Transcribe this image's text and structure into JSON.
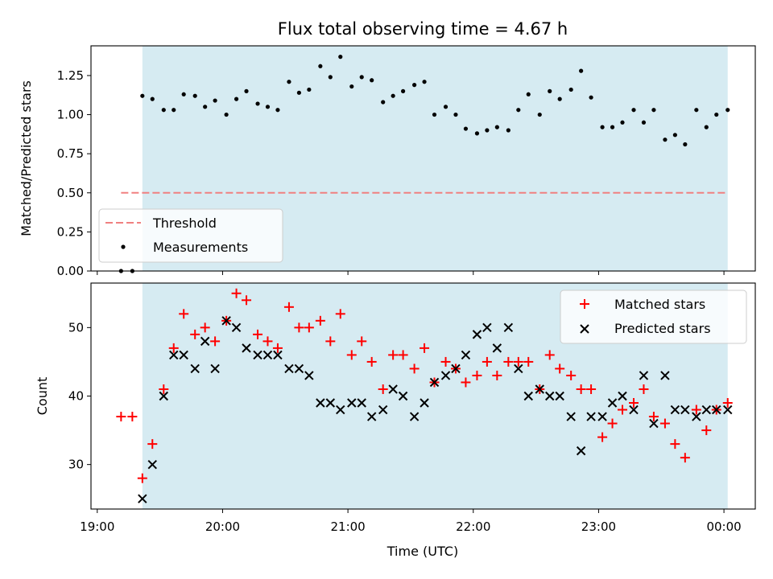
{
  "chart_data": {
    "title": "Flux total observing time = 4.67 h",
    "xlabel": "Time (UTC)",
    "x_unit": "hours",
    "xlim": [
      18.95,
      24.25
    ],
    "xticks": [
      {
        "value": 19,
        "label": "19:00"
      },
      {
        "value": 20,
        "label": "20:00"
      },
      {
        "value": 21,
        "label": "21:00"
      },
      {
        "value": 22,
        "label": "22:00"
      },
      {
        "value": 23,
        "label": "23:00"
      },
      {
        "value": 24,
        "label": "00:00"
      }
    ],
    "observing_window": [
      19.36,
      24.03
    ],
    "colors": {
      "shade": "#add8e6",
      "threshold": "#f08080",
      "matched": "#ff0000",
      "predicted": "#000000",
      "measurement": "#000000"
    },
    "panels": [
      {
        "type": "scatter",
        "ylabel": "Matched/Predicted stars",
        "ylim": [
          0,
          1.44
        ],
        "yticks": [
          "0.00",
          "0.25",
          "0.50",
          "0.75",
          "1.00",
          "1.25"
        ],
        "legend_position": "lower left",
        "threshold": {
          "name": "Threshold",
          "y": 0.5,
          "x_range": [
            19.19,
            24.03
          ],
          "style": "dashed"
        },
        "series": [
          {
            "name": "Measurements",
            "marker": "dot",
            "x": [
              19.19,
              19.28,
              19.36,
              19.44,
              19.53,
              19.61,
              19.69,
              19.78,
              19.86,
              19.94,
              20.03,
              20.11,
              20.19,
              20.28,
              20.36,
              20.44,
              20.53,
              20.61,
              20.69,
              20.78,
              20.86,
              20.94,
              21.03,
              21.11,
              21.19,
              21.28,
              21.36,
              21.44,
              21.53,
              21.61,
              21.69,
              21.78,
              21.86,
              21.94,
              22.03,
              22.11,
              22.19,
              22.28,
              22.36,
              22.44,
              22.53,
              22.61,
              22.69,
              22.78,
              22.86,
              22.94,
              23.03,
              23.11,
              23.19,
              23.28,
              23.36,
              23.44,
              23.53,
              23.61,
              23.69,
              23.78,
              23.86,
              23.94,
              24.03
            ],
            "y": [
              0.0,
              0.0,
              1.12,
              1.1,
              1.03,
              1.03,
              1.13,
              1.12,
              1.05,
              1.09,
              1.0,
              1.1,
              1.15,
              1.07,
              1.05,
              1.03,
              1.21,
              1.14,
              1.16,
              1.31,
              1.24,
              1.37,
              1.18,
              1.24,
              1.22,
              1.08,
              1.12,
              1.15,
              1.19,
              1.21,
              1.0,
              1.05,
              1.0,
              0.91,
              0.88,
              0.9,
              0.92,
              0.9,
              1.03,
              1.13,
              1.0,
              1.15,
              1.1,
              1.16,
              1.28,
              1.11,
              0.92,
              0.92,
              0.95,
              1.03,
              0.95,
              1.03,
              0.84,
              0.87,
              0.81,
              1.03,
              0.92,
              1.0,
              1.03
            ]
          }
        ]
      },
      {
        "type": "scatter",
        "ylabel": "Count",
        "ylim": [
          23.5,
          56.5
        ],
        "yticks": [
          "30",
          "40",
          "50"
        ],
        "legend_position": "upper right",
        "series": [
          {
            "name": "Matched stars",
            "marker": "plus",
            "x": [
              19.19,
              19.28,
              19.36,
              19.44,
              19.53,
              19.61,
              19.69,
              19.78,
              19.86,
              19.94,
              20.03,
              20.11,
              20.19,
              20.28,
              20.36,
              20.44,
              20.53,
              20.61,
              20.69,
              20.78,
              20.86,
              20.94,
              21.03,
              21.11,
              21.19,
              21.28,
              21.36,
              21.44,
              21.53,
              21.61,
              21.69,
              21.78,
              21.86,
              21.94,
              22.03,
              22.11,
              22.19,
              22.28,
              22.36,
              22.44,
              22.53,
              22.61,
              22.69,
              22.78,
              22.86,
              22.94,
              23.03,
              23.11,
              23.19,
              23.28,
              23.36,
              23.44,
              23.53,
              23.61,
              23.69,
              23.78,
              23.86,
              23.94,
              24.03
            ],
            "y": [
              37,
              37,
              28,
              33,
              41,
              47,
              52,
              49,
              50,
              48,
              51,
              55,
              54,
              49,
              48,
              47,
              53,
              50,
              50,
              51,
              48,
              52,
              46,
              48,
              45,
              41,
              46,
              46,
              44,
              47,
              42,
              45,
              44,
              42,
              43,
              45,
              43,
              45,
              45,
              45,
              41,
              46,
              44,
              43,
              41,
              41,
              34,
              36,
              38,
              39,
              41,
              37,
              36,
              33,
              31,
              38,
              35,
              38,
              39
            ]
          },
          {
            "name": "Predicted stars",
            "marker": "x",
            "x": [
              19.36,
              19.44,
              19.53,
              19.61,
              19.69,
              19.78,
              19.86,
              19.94,
              20.03,
              20.11,
              20.19,
              20.28,
              20.36,
              20.44,
              20.53,
              20.61,
              20.69,
              20.78,
              20.86,
              20.94,
              21.03,
              21.11,
              21.19,
              21.28,
              21.36,
              21.44,
              21.53,
              21.61,
              21.69,
              21.78,
              21.86,
              21.94,
              22.03,
              22.11,
              22.19,
              22.28,
              22.36,
              22.44,
              22.53,
              22.61,
              22.69,
              22.78,
              22.86,
              22.94,
              23.03,
              23.11,
              23.19,
              23.28,
              23.36,
              23.44,
              23.53,
              23.61,
              23.69,
              23.78,
              23.86,
              23.94,
              24.03
            ],
            "y": [
              25,
              30,
              40,
              46,
              46,
              44,
              48,
              44,
              51,
              50,
              47,
              46,
              46,
              46,
              44,
              44,
              43,
              39,
              39,
              38,
              39,
              39,
              37,
              38,
              41,
              40,
              37,
              39,
              42,
              43,
              44,
              46,
              49,
              50,
              47,
              50,
              44,
              40,
              41,
              40,
              40,
              37,
              32,
              37,
              37,
              39,
              40,
              38,
              43,
              36,
              43,
              38,
              38,
              37,
              38,
              38,
              38
            ]
          }
        ]
      }
    ]
  }
}
